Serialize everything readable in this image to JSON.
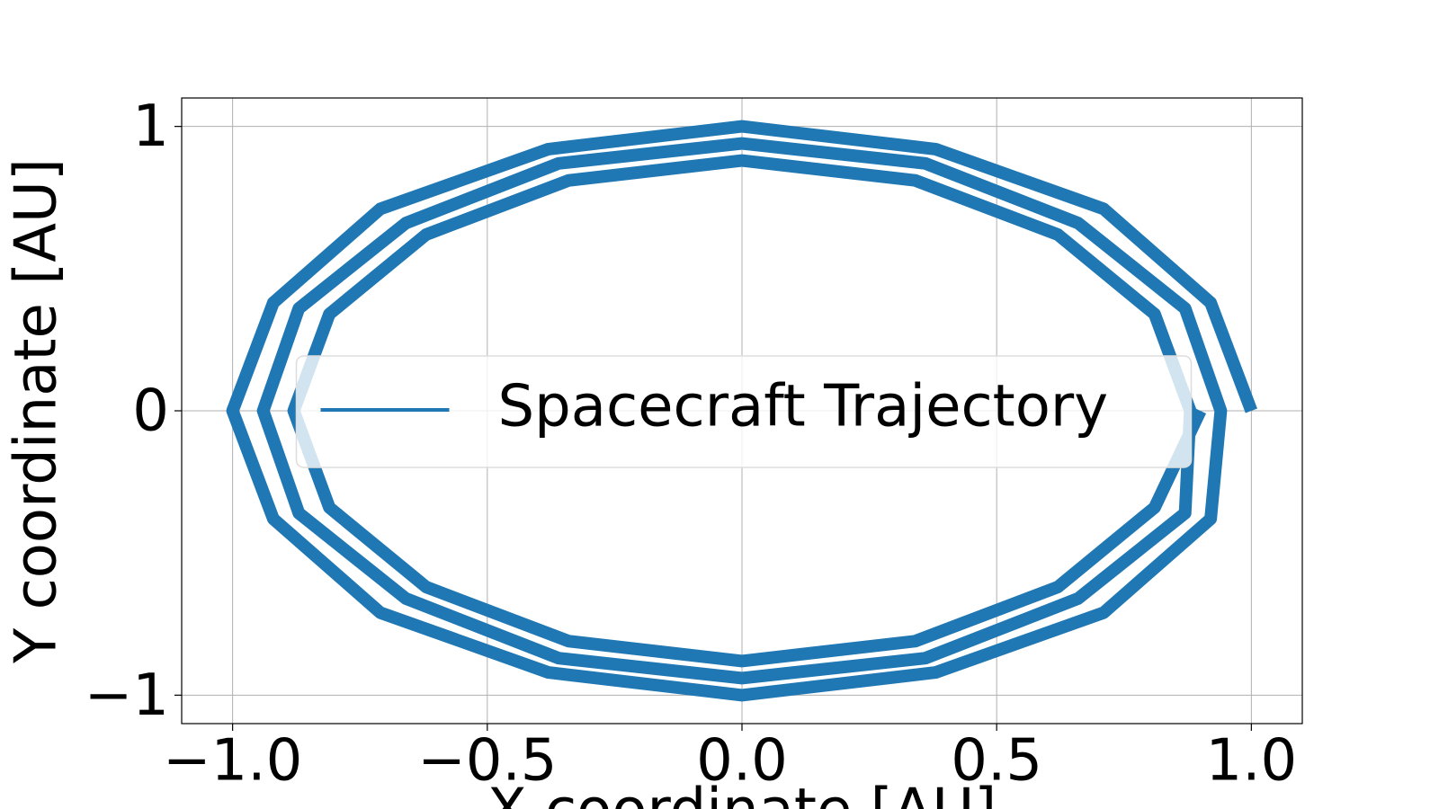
{
  "chart_data": {
    "type": "line",
    "xlabel": "X coordinate [AU]",
    "ylabel": "Y coordinate [AU]",
    "series": [
      {
        "name": "Spacecraft Trajectory",
        "color": "#1f77b4",
        "x": [
          1,
          0.92,
          0.71,
          0.38,
          0,
          -0.38,
          -0.71,
          -0.92,
          -1,
          -0.92,
          -0.71,
          -0.38,
          0,
          0.38,
          0.71,
          0.92,
          0.94,
          0.87,
          0.66,
          0.36,
          0,
          -0.36,
          -0.66,
          -0.87,
          -0.94,
          -0.87,
          -0.66,
          -0.36,
          0,
          0.36,
          0.66,
          0.87,
          0.88,
          0.81,
          0.62,
          0.34,
          0,
          -0.34,
          -0.62,
          -0.81,
          -0.88,
          -0.81,
          -0.62,
          -0.34,
          0,
          0.34,
          0.62,
          0.81,
          0.9
        ],
        "values": [
          0,
          0.38,
          0.71,
          0.92,
          1,
          0.92,
          0.71,
          0.38,
          0,
          -0.38,
          -0.71,
          -0.92,
          -1,
          -0.92,
          -0.71,
          -0.38,
          0,
          0.36,
          0.66,
          0.87,
          0.94,
          0.87,
          0.66,
          0.36,
          0,
          -0.36,
          -0.66,
          -0.87,
          -0.94,
          -0.87,
          -0.66,
          -0.36,
          0,
          0.34,
          0.62,
          0.81,
          0.88,
          0.81,
          0.62,
          0.34,
          0,
          -0.34,
          -0.62,
          -0.81,
          -0.88,
          -0.81,
          -0.62,
          -0.34,
          0
        ]
      }
    ],
    "xlim": [
      -1.1,
      1.1
    ],
    "ylim": [
      -1.1,
      1.1
    ],
    "xticks": [
      {
        "value": -1,
        "label": "−1.0"
      },
      {
        "value": -0.5,
        "label": "−0.5"
      },
      {
        "value": 0,
        "label": "0.0"
      },
      0.5,
      {
        "value": 1,
        "label": "1.0"
      }
    ],
    "yticks": [
      {
        "value": -1,
        "label": "−1"
      },
      0,
      1
    ],
    "grid": true,
    "legend": "center"
  }
}
